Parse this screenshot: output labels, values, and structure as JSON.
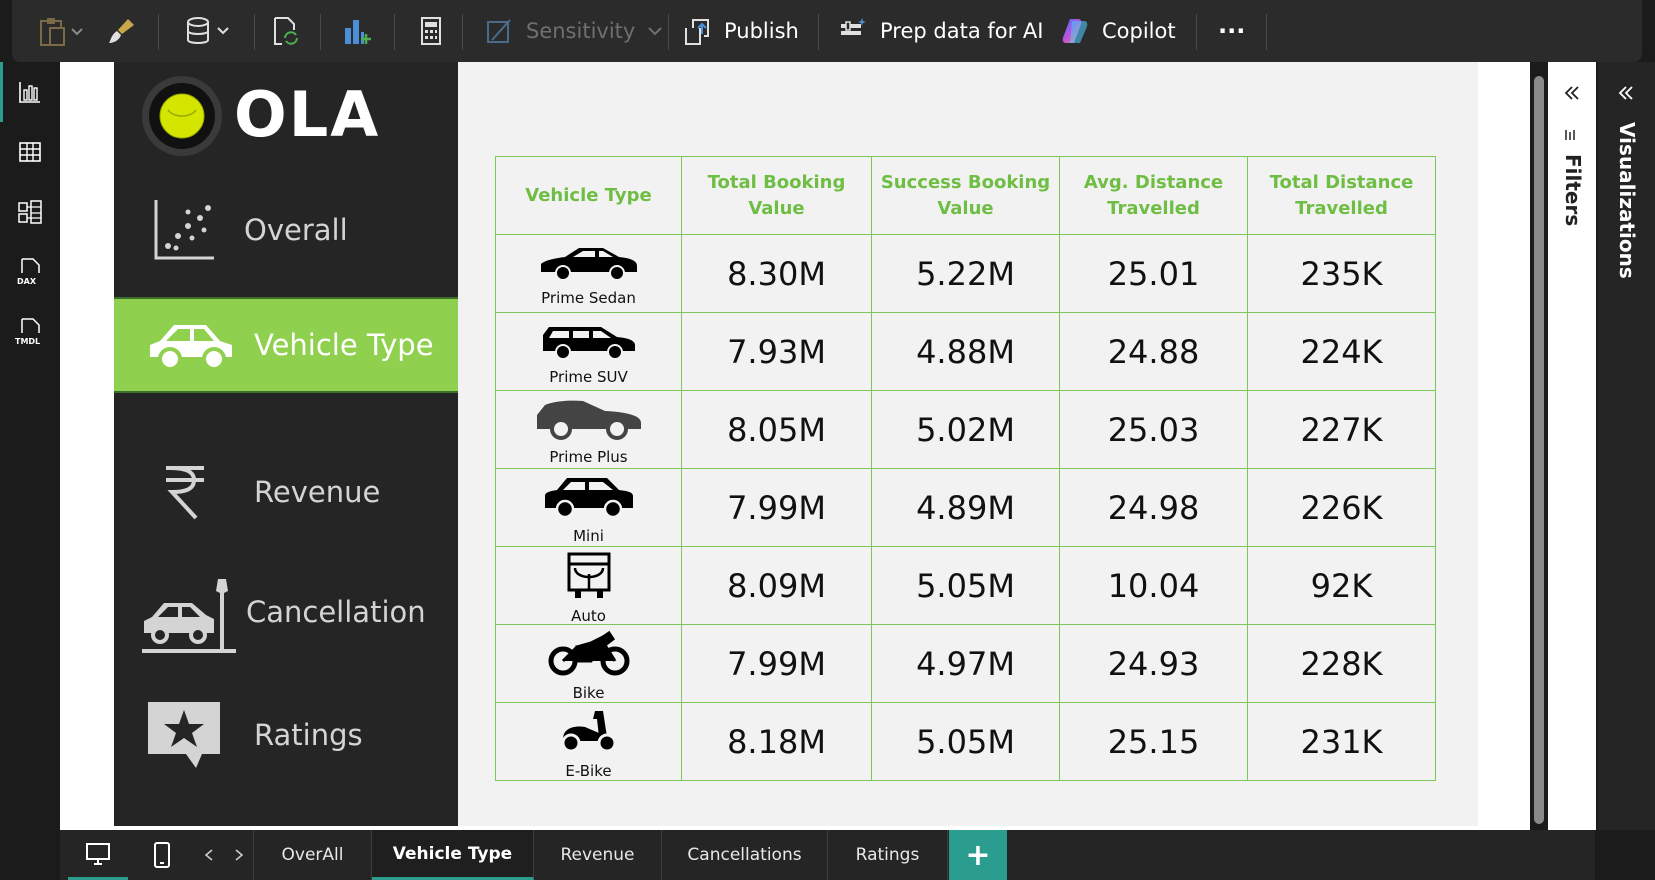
{
  "ribbon": {
    "sensitivity_label": "Sensitivity",
    "publish_label": "Publish",
    "prep_label": "Prep data for AI",
    "copilot_label": "Copilot",
    "more_label": "···"
  },
  "rail": {
    "dax_label": "DAX",
    "tmdl_label": "TMDL"
  },
  "logo": {
    "text": "OLA"
  },
  "nav": {
    "overall": "Overall",
    "vehicle_type": "Vehicle Type",
    "revenue": "Revenue",
    "cancellation": "Cancellation",
    "ratings": "Ratings"
  },
  "table": {
    "headers": {
      "vehicle_type": "Vehicle Type",
      "total_booking": "Total Booking Value",
      "success_booking": "Success Booking Value",
      "avg_distance": "Avg. Distance Travelled",
      "total_distance": "Total Distance Travelled"
    },
    "rows": [
      {
        "vehicle": "Prime Sedan",
        "icon": "sedan-icon",
        "total_booking": "8.30M",
        "success_booking": "5.22M",
        "avg_distance": "25.01",
        "total_distance": "235K"
      },
      {
        "vehicle": "Prime SUV",
        "icon": "suv-icon",
        "total_booking": "7.93M",
        "success_booking": "4.88M",
        "avg_distance": "24.88",
        "total_distance": "224K"
      },
      {
        "vehicle": "Prime Plus",
        "icon": "hatchback-icon",
        "total_booking": "8.05M",
        "success_booking": "5.02M",
        "avg_distance": "25.03",
        "total_distance": "227K"
      },
      {
        "vehicle": "Mini",
        "icon": "mini-car-icon",
        "total_booking": "7.99M",
        "success_booking": "4.89M",
        "avg_distance": "24.98",
        "total_distance": "226K"
      },
      {
        "vehicle": "Auto",
        "icon": "auto-rickshaw-icon",
        "total_booking": "8.09M",
        "success_booking": "5.05M",
        "avg_distance": "10.04",
        "total_distance": "92K"
      },
      {
        "vehicle": "Bike",
        "icon": "motorbike-icon",
        "total_booking": "7.99M",
        "success_booking": "4.97M",
        "avg_distance": "24.93",
        "total_distance": "228K"
      },
      {
        "vehicle": "E-Bike",
        "icon": "scooter-icon",
        "total_booking": "8.18M",
        "success_booking": "5.05M",
        "avg_distance": "25.15",
        "total_distance": "231K"
      }
    ]
  },
  "panes": {
    "filters_label": "Filters",
    "visualizations_label": "Visualizations"
  },
  "tabs": {
    "overall": "OverAll",
    "vehicle_type": "Vehicle Type",
    "revenue": "Revenue",
    "cancellations": "Cancellations",
    "ratings": "Ratings",
    "add": "+"
  },
  "colors": {
    "accent_green": "#8fd14f",
    "table_border": "#7cc65a",
    "teal": "#2a9d8f",
    "logo_yellow": "#d4e600"
  }
}
